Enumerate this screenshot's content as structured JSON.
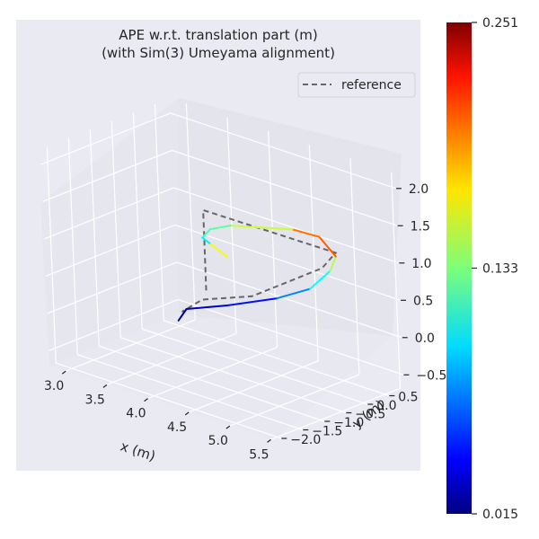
{
  "chart_data": {
    "type": "line",
    "projection": "3d",
    "title_line1": "APE w.r.t. translation part (m)",
    "title_line2": "(with Sim(3) Umeyama alignment)",
    "xlabel": "x (m)",
    "ylabel": "y (m)",
    "zlabel": "",
    "xlim": [
      2.8,
      5.55
    ],
    "ylim": [
      -2.15,
      0.85
    ],
    "zlim": [
      -0.7,
      2.2
    ],
    "x_ticks": [
      "3.0",
      "3.5",
      "4.0",
      "4.5",
      "5.0",
      "5.5"
    ],
    "y_ticks": [
      "−2.0",
      "−1.5",
      "−1.0",
      "−0.5",
      "0.0",
      "0.5"
    ],
    "z_ticks": [
      "−0.5",
      "0.0",
      "0.5",
      "1.0",
      "1.5",
      "2.0"
    ],
    "legend": {
      "position": "upper right",
      "entries": [
        {
          "label": "reference",
          "color": "#666666",
          "style": "dashed"
        }
      ]
    },
    "colorbar": {
      "colormap": "jet",
      "min": 0.015,
      "max": 0.251,
      "ticks": [
        "0.015",
        "0.133",
        "0.251"
      ]
    },
    "series": [
      {
        "name": "reference",
        "style": "dashed",
        "color": "#666666",
        "points": [
          [
            3.72,
            -0.2,
            0.2
          ],
          [
            3.75,
            -0.25,
            1.05
          ],
          [
            3.75,
            -0.25,
            1.3
          ],
          [
            5.15,
            0.15,
            1.15
          ],
          [
            5.0,
            0.1,
            0.9
          ],
          [
            4.5,
            -0.6,
            0.5
          ],
          [
            4.1,
            -1.0,
            0.4
          ],
          [
            3.85,
            -1.0,
            0.15
          ],
          [
            3.9,
            -1.1,
            0.2
          ]
        ]
      },
      {
        "name": "",
        "style": "solid",
        "colored_by": "APE (m)",
        "points": [
          [
            3.85,
            -1.1,
            0.05,
            0.02
          ],
          [
            3.9,
            -1.0,
            0.2,
            0.02
          ],
          [
            4.3,
            -0.8,
            0.35,
            0.035
          ],
          [
            4.7,
            -0.4,
            0.5,
            0.06
          ],
          [
            4.95,
            -0.1,
            0.65,
            0.09
          ],
          [
            5.1,
            0.1,
            0.9,
            0.12
          ],
          [
            5.15,
            0.15,
            1.1,
            0.17
          ],
          [
            4.9,
            0.25,
            1.25,
            0.23
          ],
          [
            4.6,
            0.2,
            1.25,
            0.16
          ],
          [
            4.0,
            -0.1,
            1.15,
            0.14
          ],
          [
            3.8,
            -0.2,
            1.05,
            0.11
          ],
          [
            3.7,
            -0.2,
            0.9,
            0.13
          ],
          [
            3.8,
            -0.2,
            0.85,
            0.07
          ],
          [
            4.0,
            -0.2,
            0.75,
            0.251
          ]
        ]
      }
    ]
  }
}
